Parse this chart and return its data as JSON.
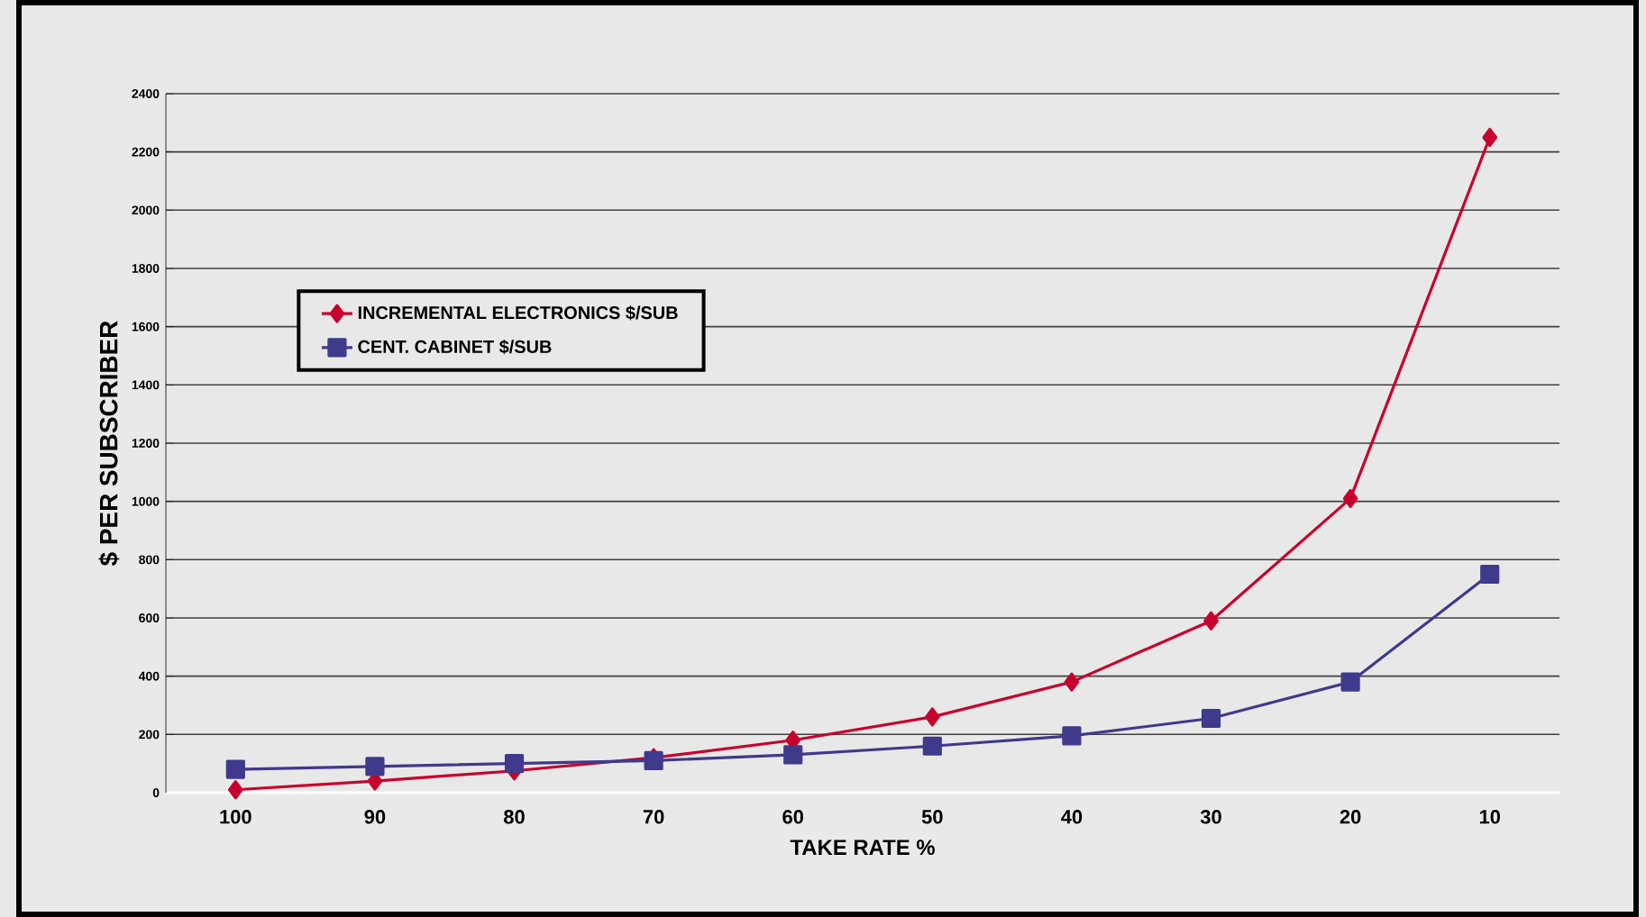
{
  "chart_data": {
    "type": "line",
    "xlabel": "TAKE RATE %",
    "ylabel": "$ PER SUBSCRIBER",
    "categories": [
      "100",
      "90",
      "80",
      "70",
      "60",
      "50",
      "40",
      "30",
      "20",
      "10"
    ],
    "series": [
      {
        "name": "INCREMENTAL ELECTRONICS $/SUB",
        "color": "#c8002d",
        "marker": "diamond",
        "values": [
          10,
          40,
          75,
          120,
          180,
          260,
          380,
          590,
          1010,
          2250
        ]
      },
      {
        "name": "CENT. CABINET $/SUB",
        "color": "#3f3a8c",
        "marker": "square",
        "values": [
          80,
          90,
          100,
          110,
          130,
          160,
          195,
          255,
          380,
          750
        ]
      }
    ],
    "ylim": [
      0,
      2400
    ],
    "yticks": [
      0,
      200,
      400,
      600,
      800,
      1000,
      1200,
      1400,
      1600,
      1800,
      2000,
      2200,
      2400
    ],
    "grid": "y",
    "legend": "left"
  }
}
